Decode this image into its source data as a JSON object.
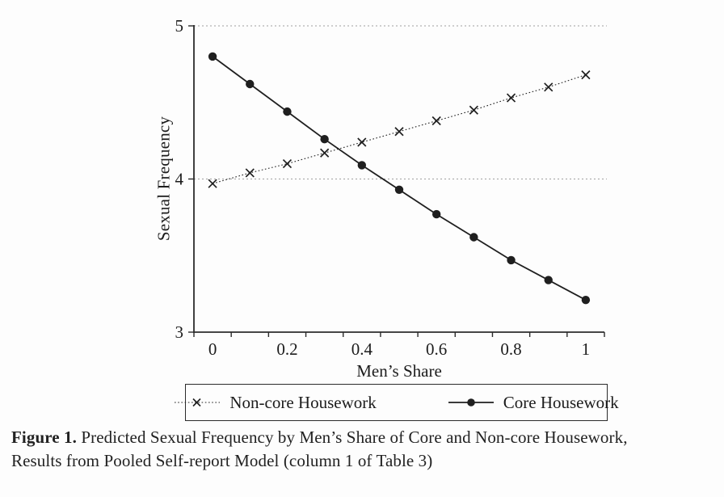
{
  "chart_data": {
    "type": "line",
    "title": "",
    "xlabel": "Men’s Share",
    "ylabel": "Sexual Frequency",
    "x": [
      0,
      0.1,
      0.2,
      0.3,
      0.4,
      0.5,
      0.6,
      0.7,
      0.8,
      0.9,
      1
    ],
    "xlim": [
      0,
      1
    ],
    "ylim": [
      3,
      5
    ],
    "y_ticks": [
      3,
      4,
      5
    ],
    "gridlines_y": [
      4,
      5
    ],
    "grid": "horizontal dotted gridlines at y=4 and y=5",
    "x_tick_labels": [
      {
        "value": 0,
        "label": "0"
      },
      {
        "value": 0.2,
        "label": "0.2"
      },
      {
        "value": 0.4,
        "label": "0.4"
      },
      {
        "value": 0.6,
        "label": "0.6"
      },
      {
        "value": 0.8,
        "label": "0.8"
      },
      {
        "value": 1,
        "label": "1"
      }
    ],
    "legend_position": "bottom boxed",
    "series": [
      {
        "name": "Non-core Housework",
        "line_style": "dotted",
        "marker": "x",
        "values": [
          3.97,
          4.04,
          4.1,
          4.17,
          4.24,
          4.31,
          4.38,
          4.45,
          4.53,
          4.6,
          4.68
        ]
      },
      {
        "name": "Core Housework",
        "line_style": "solid",
        "marker": "filled-circle",
        "values": [
          4.8,
          4.62,
          4.44,
          4.26,
          4.09,
          3.93,
          3.77,
          3.62,
          3.47,
          3.34,
          3.21
        ]
      }
    ]
  },
  "caption": {
    "label": "Figure 1.",
    "line1": " Predicted Sexual Frequency by Men’s Share of Core and Non-core Housework,",
    "line2": "Results from Pooled Self-report Model (column 1 of Table 3)"
  },
  "colors": {
    "background": "#fdfdfd",
    "axis": "#2b2b2b",
    "grid": "#a0a0a0",
    "text": "#1c1c1c",
    "series": "#1f1f1f"
  }
}
